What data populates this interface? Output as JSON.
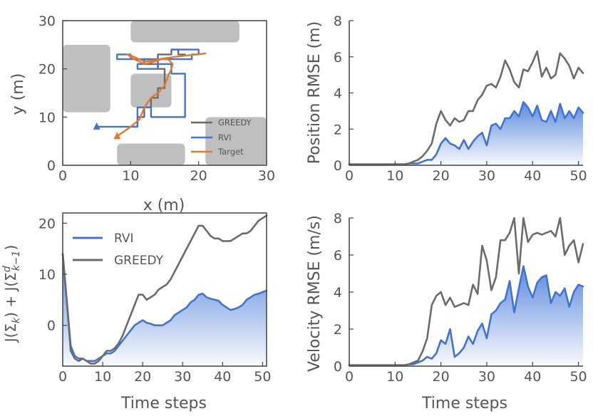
{
  "colors": {
    "greedy": "#6b6b6b",
    "rvi": "#3f74d6",
    "target": "#e07b2e",
    "obstacle": "#bfbfbf",
    "axis": "#444444",
    "text": "#555555"
  },
  "chart_data": [
    {
      "id": "trajectory",
      "type": "line",
      "xlabel": "x (m)",
      "ylabel": "y (m)",
      "xlim": [
        0,
        30
      ],
      "ylim": [
        0,
        30
      ],
      "xticks": [
        0,
        10,
        20,
        30
      ],
      "yticks": [
        0,
        10,
        20,
        30
      ],
      "legend_position": "bottom-right",
      "obstacles": [
        {
          "x0": 10,
          "y0": 25.5,
          "x1": 26,
          "y1": 30
        },
        {
          "x0": 0,
          "y0": 11,
          "x1": 7,
          "y1": 25
        },
        {
          "x0": 10,
          "y0": 12,
          "x1": 16,
          "y1": 19
        },
        {
          "x0": 21,
          "y0": 0,
          "x1": 30,
          "y1": 10
        },
        {
          "x0": 8,
          "y0": 0,
          "x1": 18,
          "y1": 4.5
        }
      ],
      "series": [
        {
          "name": "GREEDY",
          "color_key": "greedy",
          "points": [
            [
              10,
              8
            ],
            [
              11,
              8
            ],
            [
              11,
              10
            ],
            [
              12,
              10
            ],
            [
              12,
              12
            ],
            [
              13,
              12
            ],
            [
              13,
              14
            ],
            [
              14,
              14
            ],
            [
              14,
              16
            ],
            [
              15,
              16
            ],
            [
              15,
              18
            ],
            [
              15,
              20
            ],
            [
              14,
              20
            ],
            [
              14,
              21
            ],
            [
              13,
              21
            ],
            [
              13,
              22
            ],
            [
              12,
              22
            ],
            [
              12,
              21
            ],
            [
              14,
              21
            ],
            [
              14,
              23
            ],
            [
              16,
              23
            ],
            [
              16,
              24
            ],
            [
              17,
              24
            ],
            [
              17,
              23
            ],
            [
              18,
              23
            ]
          ]
        },
        {
          "name": "RVI",
          "color_key": "rvi",
          "points": [
            [
              5,
              8
            ],
            [
              11,
              8
            ],
            [
              11,
              12
            ],
            [
              13,
              12
            ],
            [
              13,
              10
            ],
            [
              18,
              10
            ],
            [
              18,
              19
            ],
            [
              16,
              19
            ],
            [
              16,
              21
            ],
            [
              14,
              21
            ],
            [
              14,
              20
            ],
            [
              11,
              20
            ],
            [
              11,
              21
            ],
            [
              12,
              21
            ],
            [
              12,
              22
            ],
            [
              10,
              22
            ],
            [
              10,
              23
            ],
            [
              8,
              23
            ],
            [
              8,
              22
            ],
            [
              19,
              22
            ],
            [
              19,
              23
            ],
            [
              20,
              23
            ],
            [
              20,
              24
            ],
            [
              16,
              24
            ]
          ]
        },
        {
          "name": "Target",
          "color_key": "target",
          "points": [
            [
              8,
              6
            ],
            [
              9,
              7
            ],
            [
              10,
              8
            ],
            [
              11.3,
              9.5
            ],
            [
              12,
              12
            ],
            [
              13,
              14
            ],
            [
              14,
              15
            ],
            [
              15,
              16.5
            ],
            [
              15.5,
              18.5
            ],
            [
              16,
              20
            ],
            [
              16.2,
              21
            ],
            [
              15.5,
              22
            ],
            [
              14.5,
              22
            ],
            [
              13.5,
              21.5
            ],
            [
              12,
              21
            ],
            [
              10.5,
              22
            ],
            [
              9.5,
              23
            ],
            [
              10.5,
              22.5
            ],
            [
              12,
              21.5
            ],
            [
              13.5,
              21.8
            ],
            [
              15,
              22.2
            ],
            [
              16.5,
              22.5
            ],
            [
              18.5,
              22.8
            ],
            [
              21,
              23.2
            ]
          ]
        }
      ]
    },
    {
      "id": "cost",
      "type": "area",
      "xlabel": "Time steps",
      "ylabel": "J(Σ_k) + J(Σ^d_{k−1})",
      "xlim": [
        0,
        51
      ],
      "ylim": [
        -8,
        22
      ],
      "xticks": [
        0,
        10,
        20,
        30,
        40,
        50
      ],
      "yticks": [
        0,
        10,
        20
      ],
      "legend_position": "top-left",
      "series": [
        {
          "name": "RVI",
          "color_key": "rvi",
          "filled": true,
          "x": [
            0,
            1,
            2,
            3,
            4,
            5,
            6,
            7,
            8,
            9,
            10,
            11,
            12,
            13,
            14,
            15,
            16,
            17,
            18,
            19,
            20,
            21,
            22,
            23,
            24,
            25,
            26,
            27,
            28,
            29,
            30,
            31,
            32,
            33,
            34,
            35,
            36,
            37,
            38,
            39,
            40,
            41,
            42,
            43,
            44,
            45,
            46,
            47,
            48,
            49,
            50,
            51
          ],
          "values": [
            14,
            5,
            -4,
            -6,
            -6.5,
            -6.5,
            -7,
            -7,
            -7,
            -6.5,
            -6,
            -5.5,
            -5.5,
            -5,
            -4,
            -3,
            -2,
            -1,
            0,
            0.5,
            1,
            0.5,
            0.3,
            0,
            0,
            0,
            0.5,
            1,
            2,
            2.5,
            3,
            3.5,
            4.5,
            5,
            6,
            6.2,
            5.5,
            5.2,
            5,
            4.8,
            4,
            3.5,
            3,
            3.2,
            3.5,
            4,
            5,
            5.5,
            6,
            6.2,
            6.5,
            6.8
          ]
        },
        {
          "name": "GREEDY",
          "color_key": "greedy",
          "filled": false,
          "x": [
            0,
            1,
            2,
            3,
            4,
            5,
            6,
            7,
            8,
            9,
            10,
            11,
            12,
            13,
            14,
            15,
            16,
            17,
            18,
            19,
            20,
            21,
            22,
            23,
            24,
            25,
            26,
            27,
            28,
            29,
            30,
            31,
            32,
            33,
            34,
            35,
            36,
            37,
            38,
            39,
            40,
            41,
            42,
            43,
            44,
            45,
            46,
            47,
            48,
            49,
            50,
            51
          ],
          "values": [
            14,
            5,
            -5,
            -6.5,
            -7,
            -6.5,
            -7,
            -7.5,
            -7.5,
            -7,
            -6,
            -5,
            -5,
            -4.5,
            -3.5,
            -2,
            0,
            2,
            4,
            6,
            6,
            5,
            5.5,
            6,
            7,
            7.5,
            8,
            9,
            10.5,
            12,
            13.5,
            15,
            16.5,
            18,
            19.5,
            19.5,
            18.5,
            17.5,
            17,
            17,
            16.5,
            16.5,
            16.5,
            17,
            17.5,
            18,
            18,
            18.5,
            19.5,
            20.5,
            21,
            21.5
          ]
        }
      ]
    },
    {
      "id": "position_rmse",
      "type": "area",
      "xlabel": "",
      "ylabel": "Position RMSE (m)",
      "xlim": [
        0,
        51
      ],
      "ylim": [
        0,
        8
      ],
      "xticks": [
        0,
        10,
        20,
        30,
        40,
        50
      ],
      "yticks": [
        0,
        2,
        4,
        6,
        8
      ],
      "series": [
        {
          "name": "RVI",
          "color_key": "rvi",
          "filled": true,
          "x": [
            0,
            1,
            2,
            3,
            4,
            5,
            6,
            7,
            8,
            9,
            10,
            11,
            12,
            13,
            14,
            15,
            16,
            17,
            18,
            19,
            20,
            21,
            22,
            23,
            24,
            25,
            26,
            27,
            28,
            29,
            30,
            31,
            32,
            33,
            34,
            35,
            36,
            37,
            38,
            39,
            40,
            41,
            42,
            43,
            44,
            45,
            46,
            47,
            48,
            49,
            50,
            51
          ],
          "values": [
            0.05,
            0.05,
            0.05,
            0.05,
            0.05,
            0.05,
            0.05,
            0.05,
            0.05,
            0.05,
            0.05,
            0.05,
            0.05,
            0.1,
            0.1,
            0.1,
            0.2,
            0.3,
            0.3,
            0.6,
            1.2,
            1.5,
            1.2,
            1.1,
            0.9,
            1.4,
            0.9,
            1.3,
            1.6,
            1.8,
            1.1,
            2.2,
            2.3,
            2.0,
            2.6,
            2.6,
            3.0,
            2.7,
            3.5,
            3.2,
            2.7,
            3.3,
            2.5,
            2.4,
            3.0,
            2.4,
            3.4,
            2.6,
            3.0,
            2.6,
            3.2,
            2.9
          ]
        },
        {
          "name": "GREEDY",
          "color_key": "greedy",
          "filled": false,
          "x": [
            0,
            1,
            2,
            3,
            4,
            5,
            6,
            7,
            8,
            9,
            10,
            11,
            12,
            13,
            14,
            15,
            16,
            17,
            18,
            19,
            20,
            21,
            22,
            23,
            24,
            25,
            26,
            27,
            28,
            29,
            30,
            31,
            32,
            33,
            34,
            35,
            36,
            37,
            38,
            39,
            40,
            41,
            42,
            43,
            44,
            45,
            46,
            47,
            48,
            49,
            50,
            51
          ],
          "values": [
            0.05,
            0.05,
            0.05,
            0.05,
            0.05,
            0.05,
            0.05,
            0.05,
            0.05,
            0.05,
            0.05,
            0.05,
            0.05,
            0.1,
            0.2,
            0.3,
            0.5,
            0.8,
            1.2,
            2.3,
            3.0,
            2.5,
            2.2,
            2.6,
            2.4,
            2.5,
            3.0,
            3.0,
            3.6,
            3.9,
            4.4,
            4.5,
            4.3,
            4.9,
            5.8,
            5.3,
            4.6,
            4.3,
            5.3,
            5.2,
            5.7,
            6.3,
            4.9,
            5.4,
            4.8,
            5.0,
            6.2,
            5.9,
            5.5,
            4.8,
            5.4,
            5.1
          ]
        }
      ]
    },
    {
      "id": "velocity_rmse",
      "type": "area",
      "xlabel": "Time steps",
      "ylabel": "Velocity RMSE (m/s)",
      "xlim": [
        0,
        51
      ],
      "ylim": [
        0,
        8
      ],
      "xticks": [
        0,
        10,
        20,
        30,
        40,
        50
      ],
      "yticks": [
        0,
        2,
        4,
        6,
        8
      ],
      "series": [
        {
          "name": "RVI",
          "color_key": "rvi",
          "filled": true,
          "x": [
            0,
            1,
            2,
            3,
            4,
            5,
            6,
            7,
            8,
            9,
            10,
            11,
            12,
            13,
            14,
            15,
            16,
            17,
            18,
            19,
            20,
            21,
            22,
            23,
            24,
            25,
            26,
            27,
            28,
            29,
            30,
            31,
            32,
            33,
            34,
            35,
            36,
            37,
            38,
            39,
            40,
            41,
            42,
            43,
            44,
            45,
            46,
            47,
            48,
            49,
            50,
            51
          ],
          "values": [
            0.05,
            0.05,
            0.05,
            0.05,
            0.05,
            0.05,
            0.05,
            0.05,
            0.05,
            0.05,
            0.05,
            0.05,
            0.05,
            0.1,
            0.1,
            0.2,
            0.3,
            0.5,
            0.4,
            0.7,
            1.4,
            1.2,
            2.0,
            0.5,
            0.7,
            1.0,
            1.6,
            1.2,
            1.9,
            2.3,
            1.5,
            2.8,
            3.0,
            3.4,
            3.6,
            4.6,
            2.9,
            4.2,
            5.4,
            4.3,
            3.7,
            4.5,
            4.8,
            4.9,
            3.4,
            4.0,
            3.8,
            4.2,
            3.2,
            4.0,
            4.4,
            4.3
          ]
        },
        {
          "name": "GREEDY",
          "color_key": "greedy",
          "filled": false,
          "x": [
            0,
            1,
            2,
            3,
            4,
            5,
            6,
            7,
            8,
            9,
            10,
            11,
            12,
            13,
            14,
            15,
            16,
            17,
            18,
            19,
            20,
            21,
            22,
            23,
            24,
            25,
            26,
            27,
            28,
            29,
            30,
            31,
            32,
            33,
            34,
            35,
            36,
            37,
            38,
            39,
            40,
            41,
            42,
            43,
            44,
            45,
            46,
            47,
            48,
            49,
            50,
            51
          ],
          "values": [
            0.05,
            0.05,
            0.05,
            0.05,
            0.05,
            0.05,
            0.05,
            0.05,
            0.05,
            0.05,
            0.05,
            0.05,
            0.05,
            0.1,
            0.2,
            0.3,
            0.8,
            1.5,
            3.3,
            3.8,
            4.0,
            3.3,
            3.7,
            3.2,
            3.3,
            3.4,
            3.3,
            4.4,
            3.9,
            6.5,
            5.7,
            4.1,
            4.8,
            6.8,
            6.8,
            7.2,
            8.0,
            5.0,
            8.0,
            6.7,
            7.1,
            7.2,
            7.1,
            7.2,
            7.3,
            7.0,
            8.0,
            6.0,
            6.5,
            6.8,
            5.6,
            6.6
          ]
        }
      ]
    }
  ]
}
